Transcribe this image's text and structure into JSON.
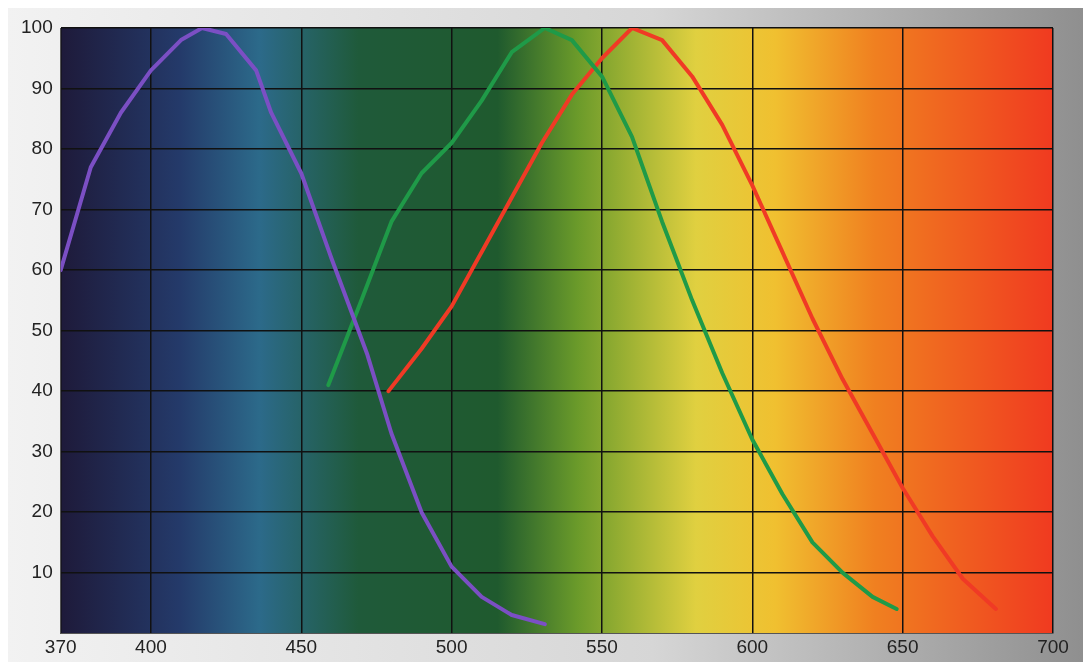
{
  "chart_data": {
    "type": "line",
    "xlim": [
      370,
      700
    ],
    "ylim": [
      0,
      100
    ],
    "xticks": [
      370,
      400,
      450,
      500,
      550,
      600,
      650,
      700
    ],
    "yticks": [
      10,
      20,
      30,
      40,
      50,
      60,
      70,
      80,
      90,
      100
    ],
    "grid": true,
    "marker": "none",
    "line_style": "solid",
    "series": [
      {
        "color": "#7b4fc4",
        "x": [
          370,
          380,
          390,
          400,
          410,
          417,
          425,
          435,
          440,
          450,
          460,
          472,
          480,
          490,
          500,
          510,
          520,
          531
        ],
        "values": [
          60,
          77,
          86,
          93,
          98,
          100,
          99,
          93,
          86,
          76,
          62,
          46,
          33,
          20,
          11,
          6,
          3,
          1.5
        ]
      },
      {
        "color": "#1f9a48",
        "x": [
          459,
          470,
          480,
          490,
          500,
          510,
          520,
          531,
          540,
          550,
          560,
          570,
          580,
          590,
          600,
          610,
          620,
          630,
          640,
          648
        ],
        "values": [
          41,
          55,
          68,
          76,
          81,
          88,
          96,
          100,
          98,
          92,
          82,
          68,
          55,
          43,
          32,
          23,
          15,
          10,
          6,
          4
        ]
      },
      {
        "color": "#f03a25",
        "x": [
          479,
          490,
          500,
          510,
          520,
          530,
          540,
          550,
          560,
          570,
          580,
          590,
          600,
          610,
          620,
          630,
          640,
          650,
          660,
          670,
          681
        ],
        "values": [
          40,
          47,
          54,
          63,
          72,
          81,
          89,
          95,
          100,
          98,
          92,
          84,
          74,
          63,
          52,
          42,
          33,
          24,
          16,
          9,
          4
        ]
      }
    ]
  }
}
